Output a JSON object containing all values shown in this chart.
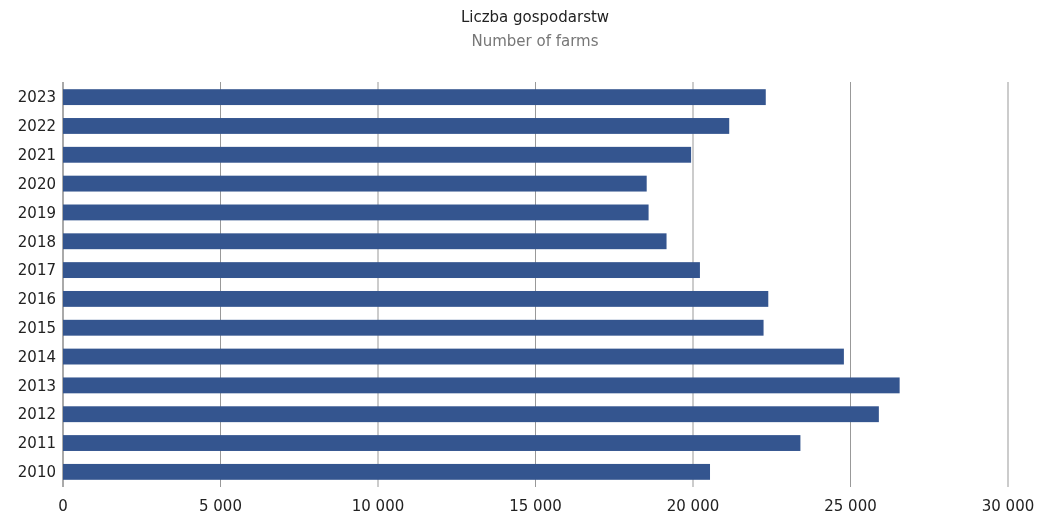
{
  "chart_data": {
    "type": "bar",
    "orientation": "horizontal",
    "title": "Liczba gospodarstw",
    "subtitle": "Number of farms",
    "categories": [
      "2023",
      "2022",
      "2021",
      "2020",
      "2019",
      "2018",
      "2017",
      "2016",
      "2015",
      "2014",
      "2013",
      "2012",
      "2011",
      "2010"
    ],
    "values": [
      22310,
      21150,
      19940,
      18530,
      18590,
      19160,
      20220,
      22390,
      22240,
      24790,
      26560,
      25900,
      23410,
      20540
    ],
    "color": "#34558f",
    "xlim": [
      0,
      30000
    ],
    "xticks": [
      0,
      {
        "value": 5000,
        "label": "5 000"
      },
      {
        "value": 10000,
        "label": "10 000"
      },
      {
        "value": 15000,
        "label": "15 000"
      },
      {
        "value": 20000,
        "label": "20 000"
      },
      {
        "value": 25000,
        "label": "25 000"
      },
      {
        "value": 30000,
        "label": "30 000"
      }
    ],
    "grid": "x"
  }
}
